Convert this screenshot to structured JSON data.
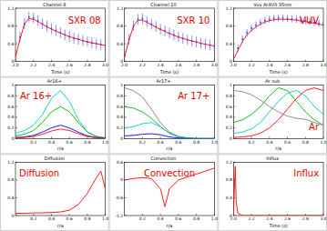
{
  "chart_data": [
    {
      "type": "line",
      "title": "Channel 8",
      "annotation": "SXR 08",
      "x_label": "Time (s)",
      "xlim": [
        2,
        3
      ],
      "xticks": [
        {
          "value": 2,
          "label": "2.0"
        },
        {
          "value": 2.2,
          "label": "2.2"
        },
        {
          "value": 2.4,
          "label": "2.4"
        },
        {
          "value": 2.6,
          "label": "2.6"
        },
        {
          "value": 2.8,
          "label": "2.8"
        },
        {
          "value": 3,
          "label": "3.0"
        }
      ],
      "ylim": [
        0,
        1.2
      ],
      "yticks": [
        0,
        0.4,
        0.8,
        1.2
      ],
      "series": [
        {
          "color": "#4040ff",
          "marker": "circle",
          "x": [
            2,
            2.05,
            2.1,
            2.15,
            2.2,
            2.25,
            2.3,
            2.35,
            2.4,
            2.45,
            2.5,
            2.55,
            2.6,
            2.65,
            2.7,
            2.75,
            2.8,
            2.85,
            2.9,
            2.95,
            3
          ],
          "values": [
            0.15,
            0.55,
            0.85,
            1.0,
            0.98,
            0.92,
            0.85,
            0.8,
            0.74,
            0.7,
            0.65,
            0.6,
            0.56,
            0.52,
            0.5,
            0.47,
            0.45,
            0.42,
            0.4,
            0.38,
            0.36
          ],
          "errors": [
            0.12,
            0.12,
            0.12,
            0.12,
            0.12,
            0.12,
            0.12,
            0.12,
            0.12,
            0.12,
            0.12,
            0.12,
            0.12,
            0.12,
            0.12,
            0.12,
            0.12,
            0.12,
            0.12,
            0.12,
            0.12
          ]
        },
        {
          "color": "#ff0000",
          "line_style": "solid",
          "x": [
            2,
            2.05,
            2.1,
            2.15,
            2.2,
            2.25,
            2.3,
            2.35,
            2.4,
            2.45,
            2.5,
            2.55,
            2.6,
            2.65,
            2.7,
            2.75,
            2.8,
            2.85,
            2.9,
            2.95,
            3
          ],
          "values": [
            0.1,
            0.5,
            0.85,
            0.97,
            0.95,
            0.9,
            0.84,
            0.78,
            0.73,
            0.68,
            0.64,
            0.6,
            0.56,
            0.53,
            0.5,
            0.47,
            0.44,
            0.42,
            0.4,
            0.38,
            0.36
          ]
        }
      ]
    },
    {
      "type": "line",
      "title": "Channel 10",
      "annotation": "SXR 10",
      "x_label": "Time (s)",
      "xlim": [
        2,
        3
      ],
      "xticks": [
        {
          "value": 2,
          "label": "2.0"
        },
        {
          "value": 2.2,
          "label": "2.2"
        },
        {
          "value": 2.4,
          "label": "2.4"
        },
        {
          "value": 2.6,
          "label": "2.6"
        },
        {
          "value": 2.8,
          "label": "2.8"
        },
        {
          "value": 3,
          "label": "3.0"
        }
      ],
      "ylim": [
        0,
        1.2
      ],
      "yticks": [
        0,
        0.4,
        0.8,
        1.2
      ],
      "series": [
        {
          "color": "#4040ff",
          "marker": "circle",
          "x": [
            2,
            2.05,
            2.1,
            2.15,
            2.2,
            2.25,
            2.3,
            2.35,
            2.4,
            2.45,
            2.5,
            2.55,
            2.6,
            2.65,
            2.7,
            2.75,
            2.8,
            2.85,
            2.9,
            2.95,
            3
          ],
          "values": [
            0.12,
            0.5,
            0.8,
            0.95,
            0.96,
            0.9,
            0.84,
            0.79,
            0.73,
            0.69,
            0.64,
            0.6,
            0.56,
            0.52,
            0.49,
            0.46,
            0.44,
            0.41,
            0.39,
            0.37,
            0.35
          ],
          "errors": [
            0.12,
            0.12,
            0.12,
            0.12,
            0.12,
            0.12,
            0.12,
            0.12,
            0.12,
            0.12,
            0.12,
            0.12,
            0.12,
            0.12,
            0.12,
            0.12,
            0.12,
            0.12,
            0.12,
            0.12,
            0.12
          ]
        },
        {
          "color": "#ff0000",
          "line_style": "solid",
          "x": [
            2,
            2.05,
            2.1,
            2.15,
            2.2,
            2.25,
            2.3,
            2.35,
            2.4,
            2.45,
            2.5,
            2.55,
            2.6,
            2.65,
            2.7,
            2.75,
            2.8,
            2.85,
            2.9,
            2.95,
            3
          ],
          "values": [
            0.1,
            0.48,
            0.8,
            0.93,
            0.93,
            0.88,
            0.83,
            0.77,
            0.72,
            0.68,
            0.63,
            0.59,
            0.55,
            0.52,
            0.49,
            0.46,
            0.44,
            0.41,
            0.39,
            0.37,
            0.35
          ]
        }
      ]
    },
    {
      "type": "line",
      "title": "Vuv ArXVII 35nm",
      "annotation": "VUV",
      "x_label": "Time (s)",
      "xlim": [
        2,
        3
      ],
      "xticks": [
        {
          "value": 2,
          "label": "2.0"
        },
        {
          "value": 2.2,
          "label": "2.2"
        },
        {
          "value": 2.4,
          "label": "2.4"
        },
        {
          "value": 2.6,
          "label": "2.6"
        },
        {
          "value": 2.8,
          "label": "2.8"
        },
        {
          "value": 3,
          "label": "3.0"
        }
      ],
      "ylim": [
        0,
        1.2
      ],
      "yticks": [
        0,
        0.4,
        0.8,
        1.2
      ],
      "series": [
        {
          "color": "#4040ff",
          "marker": "circle",
          "x": [
            2,
            2.05,
            2.1,
            2.15,
            2.2,
            2.25,
            2.3,
            2.35,
            2.4,
            2.45,
            2.5,
            2.55,
            2.6,
            2.65,
            2.7,
            2.75,
            2.8,
            2.85,
            2.9,
            2.95,
            3
          ],
          "values": [
            0.1,
            0.3,
            0.5,
            0.65,
            0.75,
            0.82,
            0.88,
            0.92,
            0.95,
            0.97,
            0.98,
            0.98,
            0.97,
            0.96,
            0.95,
            0.93,
            0.92,
            0.9,
            0.88,
            0.86,
            0.84
          ],
          "errors": [
            0.08,
            0.08,
            0.08,
            0.08,
            0.08,
            0.08,
            0.08,
            0.08,
            0.08,
            0.08,
            0.08,
            0.08,
            0.08,
            0.08,
            0.08,
            0.08,
            0.08,
            0.08,
            0.08,
            0.08,
            0.08
          ]
        },
        {
          "color": "#ff0000",
          "line_style": "solid",
          "x": [
            2,
            2.05,
            2.1,
            2.15,
            2.2,
            2.25,
            2.3,
            2.35,
            2.4,
            2.45,
            2.5,
            2.55,
            2.6,
            2.65,
            2.7,
            2.75,
            2.8,
            2.85,
            2.9,
            2.95,
            3
          ],
          "values": [
            0.05,
            0.25,
            0.45,
            0.6,
            0.7,
            0.78,
            0.84,
            0.89,
            0.92,
            0.94,
            0.95,
            0.95,
            0.95,
            0.94,
            0.93,
            0.91,
            0.9,
            0.88,
            0.86,
            0.84,
            0.82
          ]
        }
      ]
    },
    {
      "type": "line",
      "title": "Ar16+",
      "annotation": "Ar 16+",
      "x_label": "r/a",
      "xlim": [
        0,
        1
      ],
      "xticks": [
        0.2,
        0.4,
        0.6,
        0.8,
        {
          "value": 1,
          "label": "1.0"
        }
      ],
      "ylim": [
        0,
        1
      ],
      "yticks": [
        0,
        0.2,
        0.4,
        0.6,
        0.8,
        1
      ],
      "series": [
        {
          "color": "#00c8c8",
          "x": [
            0,
            0.1,
            0.2,
            0.3,
            0.4,
            0.5,
            0.6,
            0.7,
            0.8,
            0.9,
            1
          ],
          "values": [
            0.1,
            0.15,
            0.25,
            0.45,
            0.75,
            0.9,
            0.7,
            0.35,
            0.12,
            0.04,
            0.01
          ]
        },
        {
          "color": "#00b000",
          "x": [
            0,
            0.1,
            0.2,
            0.3,
            0.4,
            0.5,
            0.6,
            0.7,
            0.8,
            0.9,
            1
          ],
          "values": [
            0.05,
            0.08,
            0.15,
            0.3,
            0.5,
            0.6,
            0.5,
            0.3,
            0.12,
            0.04,
            0.01
          ]
        },
        {
          "color": "#0000ff",
          "x": [
            0,
            0.1,
            0.2,
            0.3,
            0.4,
            0.5,
            0.6,
            0.7,
            0.8,
            0.9,
            1
          ],
          "values": [
            0.02,
            0.03,
            0.06,
            0.12,
            0.2,
            0.25,
            0.2,
            0.12,
            0.05,
            0.02,
            0
          ]
        },
        {
          "color": "#ff0000",
          "x": [
            0,
            0.1,
            0.2,
            0.3,
            0.4,
            0.5,
            0.6,
            0.7,
            0.8,
            0.9,
            1
          ],
          "values": [
            0.01,
            0.02,
            0.04,
            0.08,
            0.14,
            0.18,
            0.15,
            0.09,
            0.04,
            0.01,
            0
          ]
        }
      ]
    },
    {
      "type": "line",
      "title": "Ar17+",
      "annotation": "Ar 17+",
      "x_label": "r/a",
      "xlim": [
        0,
        1
      ],
      "xticks": [
        0.2,
        0.4,
        0.6,
        0.8,
        {
          "value": 1,
          "label": "1.0"
        }
      ],
      "ylim": [
        0,
        1
      ],
      "yticks": [
        0,
        0.2,
        0.4,
        0.6,
        0.8,
        1
      ],
      "series": [
        {
          "color": "#808080",
          "x": [
            0,
            0.1,
            0.2,
            0.3,
            0.4,
            0.5,
            0.6,
            0.7,
            0.8,
            0.9,
            1
          ],
          "values": [
            0.95,
            0.9,
            0.78,
            0.55,
            0.3,
            0.12,
            0.04,
            0.01,
            0,
            0,
            0
          ]
        },
        {
          "color": "#00b000",
          "x": [
            0,
            0.1,
            0.2,
            0.3,
            0.4,
            0.5,
            0.6,
            0.7,
            0.8,
            0.9,
            1
          ],
          "values": [
            0.6,
            0.57,
            0.5,
            0.38,
            0.22,
            0.1,
            0.03,
            0.01,
            0,
            0,
            0
          ]
        },
        {
          "color": "#00c8c8",
          "x": [
            0,
            0.1,
            0.2,
            0.3,
            0.4,
            0.5,
            0.6,
            0.7,
            0.8,
            0.9,
            1
          ],
          "values": [
            0.2,
            0.22,
            0.28,
            0.3,
            0.22,
            0.1,
            0.03,
            0.01,
            0,
            0,
            0
          ]
        },
        {
          "color": "#0000ff",
          "x": [
            0,
            0.1,
            0.2,
            0.3,
            0.4,
            0.5,
            0.6,
            0.7,
            0.8,
            0.9,
            1
          ],
          "values": [
            0.05,
            0.06,
            0.08,
            0.09,
            0.07,
            0.03,
            0.01,
            0,
            0,
            0,
            0
          ]
        }
      ]
    },
    {
      "type": "line",
      "title": "Ar sub",
      "annotation": "Ar",
      "x_label": "r/a",
      "xlim": [
        0,
        1
      ],
      "xticks": [
        0.2,
        0.4,
        0.6,
        0.8,
        {
          "value": 1,
          "label": "1.0"
        }
      ],
      "ylim": [
        0,
        1
      ],
      "yticks": [
        0,
        0.2,
        0.4,
        0.6,
        0.8,
        1
      ],
      "series": [
        {
          "color": "#ff0000",
          "x": [
            0,
            0.1,
            0.2,
            0.3,
            0.4,
            0.5,
            0.6,
            0.7,
            0.8,
            0.9,
            1
          ],
          "values": [
            0.02,
            0.03,
            0.05,
            0.1,
            0.2,
            0.35,
            0.55,
            0.75,
            0.9,
            0.95,
            0.9
          ]
        },
        {
          "color": "#00b000",
          "x": [
            0,
            0.1,
            0.2,
            0.3,
            0.4,
            0.5,
            0.6,
            0.7,
            0.8,
            0.9,
            1
          ],
          "values": [
            0.3,
            0.35,
            0.45,
            0.6,
            0.8,
            0.95,
            0.9,
            0.7,
            0.5,
            0.35,
            0.25
          ]
        },
        {
          "color": "#00c8c8",
          "x": [
            0,
            0.1,
            0.2,
            0.3,
            0.4,
            0.5,
            0.6,
            0.7,
            0.8,
            0.9,
            1
          ],
          "values": [
            0.1,
            0.12,
            0.18,
            0.3,
            0.5,
            0.7,
            0.85,
            0.9,
            0.8,
            0.6,
            0.45
          ]
        },
        {
          "color": "#808080",
          "x": [
            0,
            0.1,
            0.2,
            0.3,
            0.4,
            0.5,
            0.6,
            0.7,
            0.8,
            0.9,
            1
          ],
          "values": [
            0.9,
            0.88,
            0.82,
            0.72,
            0.6,
            0.5,
            0.42,
            0.38,
            0.36,
            0.3,
            0.25
          ]
        }
      ]
    },
    {
      "type": "line",
      "title": "Diffusion",
      "annotation": "Diffusion",
      "x_label": "r/a",
      "xlim": [
        0,
        1
      ],
      "xticks": [
        0.2,
        0.4,
        0.6,
        0.8,
        {
          "value": 1,
          "label": "1.0"
        }
      ],
      "ylim": [
        0,
        1.2
      ],
      "yticks": [
        0,
        0.4,
        0.8,
        1.2
      ],
      "series": [
        {
          "color": "#ff0000",
          "x": [
            0,
            0.1,
            0.2,
            0.3,
            0.4,
            0.5,
            0.6,
            0.7,
            0.8,
            0.9,
            0.95,
            1
          ],
          "values": [
            0.05,
            0.05,
            0.06,
            0.06,
            0.07,
            0.08,
            0.12,
            0.25,
            0.5,
            0.85,
            1.0,
            0.6
          ]
        }
      ]
    },
    {
      "type": "line",
      "title": "Convection",
      "annotation": "Convection",
      "x_label": "r/a",
      "xlim": [
        0,
        1
      ],
      "xticks": [
        0.2,
        0.4,
        0.6,
        0.8,
        {
          "value": 1,
          "label": "1.0"
        }
      ],
      "ylim": [
        -1.2,
        0.6
      ],
      "yticks": [
        -1.2,
        -0.6,
        0,
        0.6
      ],
      "series": [
        {
          "color": "#ff0000",
          "x": [
            0,
            0.1,
            0.2,
            0.3,
            0.4,
            0.45,
            0.5,
            0.6,
            0.7,
            0.8,
            0.9,
            1
          ],
          "values": [
            0,
            0.05,
            0.08,
            0.05,
            -0.3,
            -0.9,
            -0.3,
            0,
            0.1,
            0.2,
            0.3,
            0.4
          ]
        }
      ]
    },
    {
      "type": "line",
      "title": "Influx",
      "annotation": "Influx",
      "x_label": "Time (s)",
      "xlim": [
        2,
        3
      ],
      "xticks": [
        {
          "value": 2,
          "label": "2.0"
        },
        {
          "value": 2.2,
          "label": "2.2"
        },
        {
          "value": 2.4,
          "label": "2.4"
        },
        {
          "value": 2.6,
          "label": "2.6"
        },
        {
          "value": 2.8,
          "label": "2.8"
        },
        {
          "value": 3,
          "label": "3.0"
        }
      ],
      "ylim": [
        0,
        1.2
      ],
      "yticks": [
        0,
        0.4,
        0.8,
        1.2
      ],
      "series": [
        {
          "color": "#ff0000",
          "x": [
            2,
            2.01,
            2.02,
            2.03,
            2.05,
            2.1,
            2.5,
            3
          ],
          "values": [
            0,
            0.6,
            1.1,
            0.3,
            0.05,
            0,
            0,
            0
          ]
        }
      ]
    }
  ]
}
